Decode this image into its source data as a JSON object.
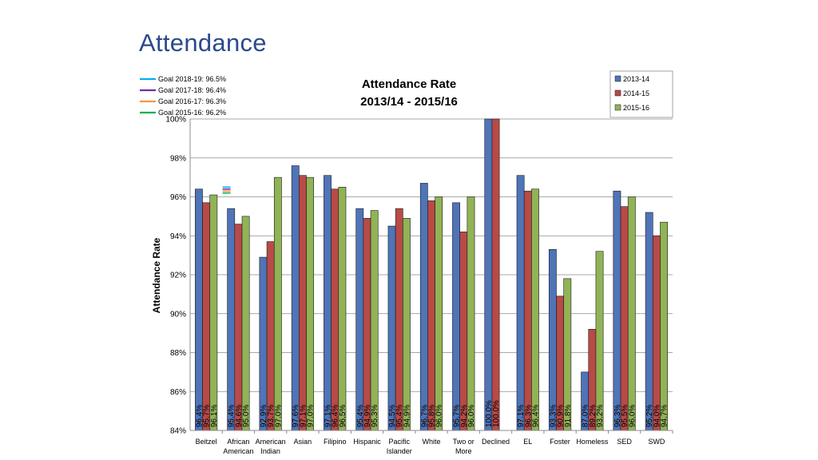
{
  "slide": {
    "title": "Attendance"
  },
  "chart_data": {
    "type": "bar",
    "title": "Attendance Rate",
    "subtitle": "2013/14 - 2015/16",
    "ylabel": "Attendance Rate",
    "xlabel": "",
    "ylim": [
      84,
      100
    ],
    "yticks": [
      84,
      86,
      88,
      90,
      92,
      94,
      96,
      98,
      100
    ],
    "ytick_suffix": "%",
    "grid": true,
    "legend_position": "top-right",
    "categories": [
      [
        "Beitzel"
      ],
      [
        "African",
        "American"
      ],
      [
        "American",
        "Indian"
      ],
      [
        "Asian"
      ],
      [
        "Filipino"
      ],
      [
        "Hispanic"
      ],
      [
        "Pacific",
        "Islander"
      ],
      [
        "White"
      ],
      [
        "Two or",
        "More"
      ],
      [
        "Declined"
      ],
      [
        "EL"
      ],
      [
        "Foster"
      ],
      [
        "Homeless"
      ],
      [
        "SED"
      ],
      [
        "SWD"
      ]
    ],
    "series": [
      {
        "name": "2013-14",
        "color": "#4f74b8",
        "values": [
          96.4,
          95.4,
          92.9,
          97.6,
          97.1,
          95.4,
          94.5,
          96.7,
          95.7,
          100.0,
          97.1,
          93.3,
          87.0,
          96.3,
          95.2
        ]
      },
      {
        "name": "2014-15",
        "color": "#b84a47",
        "values": [
          95.7,
          94.6,
          93.7,
          97.1,
          96.4,
          94.9,
          95.4,
          95.8,
          94.2,
          100.0,
          96.3,
          90.9,
          89.2,
          95.5,
          94.0
        ]
      },
      {
        "name": "2015-16",
        "color": "#91b356",
        "values": [
          96.1,
          95.0,
          97.0,
          97.0,
          96.5,
          95.3,
          94.9,
          96.0,
          96.0,
          null,
          96.4,
          91.8,
          93.2,
          96.0,
          94.7
        ]
      }
    ],
    "data_labels": [
      [
        "96.4%",
        "95.7%",
        "96.1%"
      ],
      [
        "95.4%",
        "94.6%",
        "95.0%"
      ],
      [
        "92.9%",
        "93.7%",
        "97.0%"
      ],
      [
        "97.6%",
        "97.1%",
        "97.0%"
      ],
      [
        "97.1%",
        "96.4%",
        "96.5%"
      ],
      [
        "95.4%",
        "94.9%",
        "95.3%"
      ],
      [
        "94.5%",
        "95.4%",
        "94.9%"
      ],
      [
        "96.7%",
        "95.8%",
        "96.0%"
      ],
      [
        "95.7%",
        "94.2%",
        "96.0%"
      ],
      [
        "100.0%",
        "100.0%",
        ""
      ],
      [
        "97.1%",
        "96.3%",
        "96.4%"
      ],
      [
        "93.3%",
        "90.9%",
        "91.8%"
      ],
      [
        "87.0%",
        "89.2%",
        "93.2%"
      ],
      [
        "96.3%",
        "95.5%",
        "96.0%"
      ],
      [
        "95.2%",
        "94.0%",
        "94.7%"
      ]
    ],
    "goals": [
      {
        "label": "Goal 2018-19:  96.5%",
        "value": 96.5,
        "color": "#00b0f0"
      },
      {
        "label": "Goal 2017-18:  96.4%",
        "value": 96.4,
        "color": "#7030a0"
      },
      {
        "label": "Goal 2016-17:  96.3%",
        "value": 96.3,
        "color": "#f79646"
      },
      {
        "label": "Goal 2015-16:  96.2%",
        "value": 96.2,
        "color": "#00b050"
      }
    ],
    "goal_marker_category": 1
  }
}
